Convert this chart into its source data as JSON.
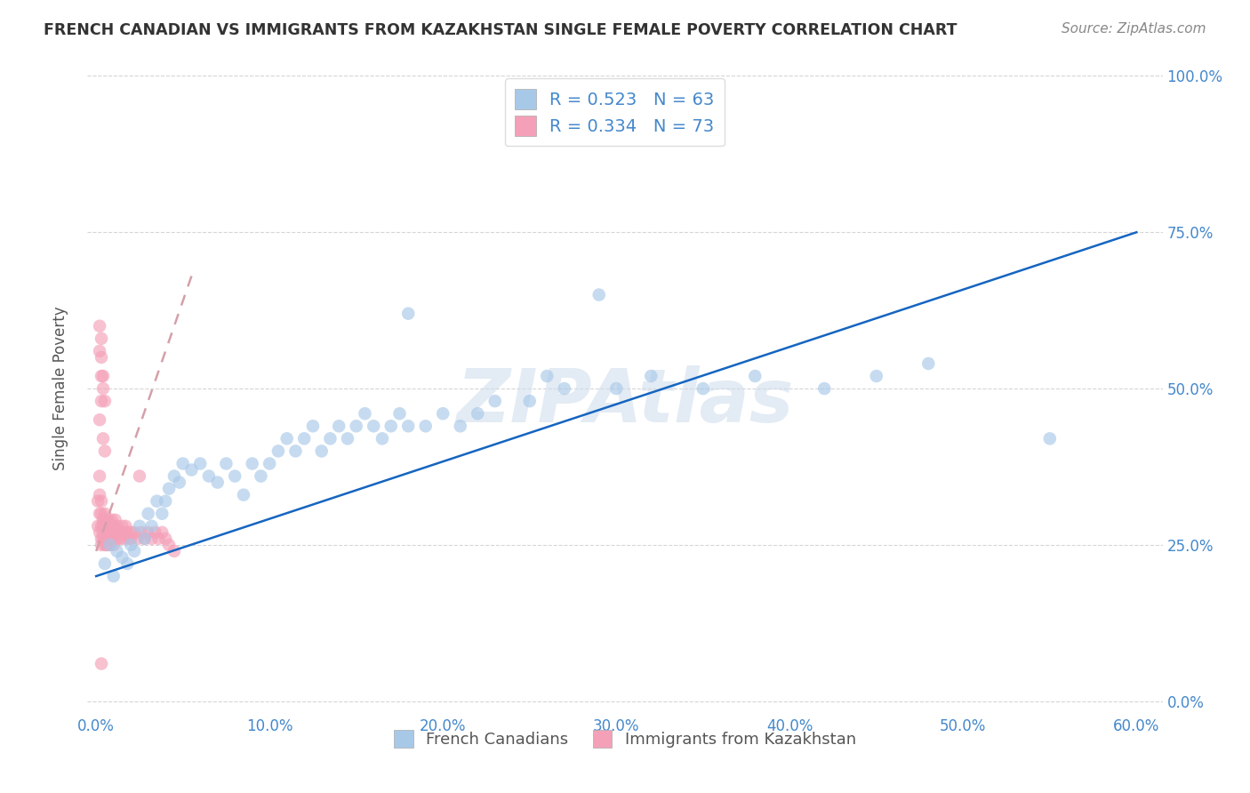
{
  "title": "FRENCH CANADIAN VS IMMIGRANTS FROM KAZAKHSTAN SINGLE FEMALE POVERTY CORRELATION CHART",
  "source": "Source: ZipAtlas.com",
  "ylabel_label": "Single Female Poverty",
  "legend_label1": "French Canadians",
  "legend_label2": "Immigrants from Kazakhstan",
  "R1": 0.523,
  "N1": 63,
  "R2": 0.334,
  "N2": 73,
  "blue_color": "#a8c8e8",
  "pink_color": "#f4a0b8",
  "line_color_blue": "#1565C0",
  "dashed_line_color": "#d4a0a8",
  "watermark_color": "#ccdcec",
  "tick_color": "#4488cc",
  "title_color": "#333333",
  "source_color": "#888888",
  "blue_scatter_x": [
    0.005,
    0.008,
    0.01,
    0.012,
    0.015,
    0.018,
    0.02,
    0.022,
    0.025,
    0.028,
    0.03,
    0.032,
    0.035,
    0.038,
    0.04,
    0.042,
    0.045,
    0.048,
    0.05,
    0.055,
    0.06,
    0.065,
    0.07,
    0.075,
    0.08,
    0.085,
    0.09,
    0.095,
    0.1,
    0.105,
    0.11,
    0.115,
    0.12,
    0.125,
    0.13,
    0.135,
    0.14,
    0.145,
    0.15,
    0.155,
    0.16,
    0.165,
    0.17,
    0.175,
    0.18,
    0.19,
    0.2,
    0.21,
    0.22,
    0.23,
    0.25,
    0.27,
    0.3,
    0.32,
    0.35,
    0.38,
    0.42,
    0.45,
    0.48,
    0.55,
    0.18,
    0.26,
    0.29
  ],
  "blue_scatter_y": [
    0.22,
    0.25,
    0.2,
    0.24,
    0.23,
    0.22,
    0.25,
    0.24,
    0.28,
    0.26,
    0.3,
    0.28,
    0.32,
    0.3,
    0.32,
    0.34,
    0.36,
    0.35,
    0.38,
    0.37,
    0.38,
    0.36,
    0.35,
    0.38,
    0.36,
    0.33,
    0.38,
    0.36,
    0.38,
    0.4,
    0.42,
    0.4,
    0.42,
    0.44,
    0.4,
    0.42,
    0.44,
    0.42,
    0.44,
    0.46,
    0.44,
    0.42,
    0.44,
    0.46,
    0.44,
    0.44,
    0.46,
    0.44,
    0.46,
    0.48,
    0.48,
    0.5,
    0.5,
    0.52,
    0.5,
    0.52,
    0.5,
    0.52,
    0.54,
    0.42,
    0.62,
    0.52,
    0.65
  ],
  "pink_scatter_x": [
    0.001,
    0.001,
    0.002,
    0.002,
    0.002,
    0.002,
    0.003,
    0.003,
    0.003,
    0.003,
    0.003,
    0.004,
    0.004,
    0.004,
    0.004,
    0.005,
    0.005,
    0.005,
    0.005,
    0.006,
    0.006,
    0.006,
    0.007,
    0.007,
    0.007,
    0.008,
    0.008,
    0.008,
    0.009,
    0.009,
    0.01,
    0.01,
    0.01,
    0.011,
    0.011,
    0.012,
    0.012,
    0.013,
    0.014,
    0.015,
    0.015,
    0.016,
    0.017,
    0.018,
    0.019,
    0.02,
    0.02,
    0.022,
    0.024,
    0.026,
    0.028,
    0.03,
    0.032,
    0.034,
    0.036,
    0.038,
    0.04,
    0.042,
    0.045,
    0.002,
    0.002,
    0.003,
    0.003,
    0.004,
    0.004,
    0.005,
    0.002,
    0.003,
    0.003,
    0.004,
    0.005,
    0.003,
    0.025
  ],
  "pink_scatter_y": [
    0.28,
    0.32,
    0.27,
    0.3,
    0.33,
    0.36,
    0.26,
    0.28,
    0.3,
    0.32,
    0.25,
    0.27,
    0.29,
    0.26,
    0.28,
    0.26,
    0.28,
    0.3,
    0.25,
    0.27,
    0.29,
    0.25,
    0.27,
    0.29,
    0.25,
    0.27,
    0.28,
    0.26,
    0.27,
    0.29,
    0.26,
    0.28,
    0.25,
    0.27,
    0.29,
    0.26,
    0.28,
    0.27,
    0.26,
    0.28,
    0.27,
    0.26,
    0.28,
    0.27,
    0.26,
    0.27,
    0.26,
    0.27,
    0.26,
    0.27,
    0.26,
    0.27,
    0.26,
    0.27,
    0.26,
    0.27,
    0.26,
    0.25,
    0.24,
    0.56,
    0.6,
    0.58,
    0.55,
    0.52,
    0.5,
    0.48,
    0.45,
    0.48,
    0.52,
    0.42,
    0.4,
    0.06,
    0.36
  ],
  "blue_line_x": [
    0.0,
    0.6
  ],
  "blue_line_y": [
    0.2,
    0.75
  ],
  "pink_line_x": [
    0.0,
    0.055
  ],
  "pink_line_y": [
    0.24,
    0.68
  ],
  "xlim": [
    -0.005,
    0.615
  ],
  "ylim": [
    -0.02,
    1.02
  ],
  "xtick_vals": [
    0.0,
    0.1,
    0.2,
    0.3,
    0.4,
    0.5,
    0.6
  ],
  "ytick_vals": [
    0.0,
    0.25,
    0.5,
    0.75,
    1.0
  ],
  "xtick_labels": [
    "0.0%",
    "10.0%",
    "20.0%",
    "30.0%",
    "40.0%",
    "50.0%",
    "60.0%"
  ],
  "ytick_labels": [
    "0.0%",
    "25.0%",
    "50.0%",
    "75.0%",
    "100.0%"
  ]
}
